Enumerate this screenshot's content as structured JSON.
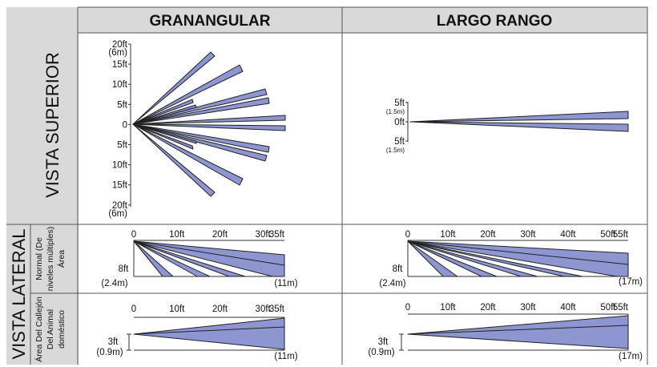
{
  "columns": {
    "wide": "GRANANGULAR",
    "long": "LARGO RANGO"
  },
  "rows": {
    "top_view": "VISTA SUPERIOR",
    "side_view": "VISTA LATERAL",
    "sub_normal": [
      "Normal (De",
      "niveles múltiples)",
      "Área"
    ],
    "sub_pet": [
      "Área Del Callejón",
      "Del Animal",
      "doméstico"
    ]
  },
  "top_wide": {
    "ticks": [
      {
        "label": "20ft",
        "sub": "(6m)"
      },
      {
        "label": "15ft"
      },
      {
        "label": "10ft"
      },
      {
        "label": "5ft"
      },
      {
        "label": "0"
      },
      {
        "label": "5ft"
      },
      {
        "label": "10ft"
      },
      {
        "label": "15ft"
      },
      {
        "label": "20ft",
        "sub": "(6m)"
      }
    ]
  },
  "top_long": {
    "ticks": [
      {
        "label": "5ft",
        "sub": "(1.5m)"
      },
      {
        "label": "0ft"
      },
      {
        "label": "5ft",
        "sub": "(1.5m)"
      }
    ]
  },
  "side_wide": {
    "scale": [
      "0",
      "10ft",
      "20ft",
      "30ft",
      "35ft"
    ],
    "height_normal": "8ft",
    "height_normal_m": "(2.4m)",
    "height_pet": "3ft",
    "height_pet_m": "(0.9m)",
    "range_m": "(11m)"
  },
  "side_long": {
    "scale": [
      "0",
      "10ft",
      "20ft",
      "30ft",
      "40ft",
      "50ft",
      "55ft"
    ],
    "height_normal": "8ft",
    "height_normal_m": "(2.4m)",
    "height_pet": "3ft",
    "height_pet_m": "(0.9m)",
    "range_m": "(17m)"
  },
  "colors": {
    "beam": "#8e96d2",
    "grid": "#555555",
    "header_bg": "#d9d9d9"
  }
}
